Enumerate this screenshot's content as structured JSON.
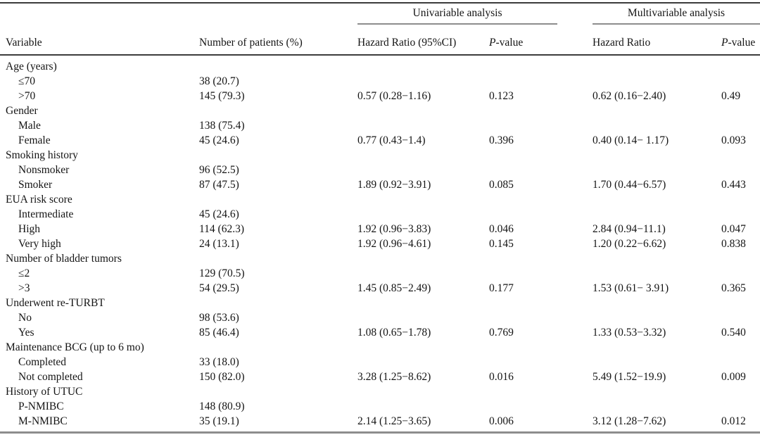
{
  "table": {
    "colors": {
      "background": "#ffffff",
      "text": "#141414",
      "rule_dark": "#3c3c3c",
      "rule_gray": "#8d8d8d"
    },
    "headers": {
      "univariable_group": "Univariable analysis",
      "multivariable_group": "Multivariable analysis",
      "variable": "Variable",
      "patients": "Number of patients (%)",
      "uni_hazard_ratio": "Hazard Ratio (95%CI)",
      "multi_hazard_ratio": "Hazard Ratio",
      "p_italic": "P",
      "p_rest": "-value"
    },
    "rows": [
      {
        "label": "Age (years)",
        "indent": false,
        "patients": "",
        "uni_hr": "",
        "uni_p": "",
        "multi_hr": "",
        "multi_p": ""
      },
      {
        "label": "≤70",
        "indent": true,
        "patients": "38 (20.7)",
        "uni_hr": "",
        "uni_p": "",
        "multi_hr": "",
        "multi_p": ""
      },
      {
        "label": ">70",
        "indent": true,
        "patients": "145 (79.3)",
        "uni_hr": "0.57 (0.28−1.16)",
        "uni_p": "0.123",
        "multi_hr": "0.62 (0.16−2.40)",
        "multi_p": "0.49"
      },
      {
        "label": "Gender",
        "indent": false,
        "patients": "",
        "uni_hr": "",
        "uni_p": "",
        "multi_hr": "",
        "multi_p": ""
      },
      {
        "label": "Male",
        "indent": true,
        "patients": "138 (75.4)",
        "uni_hr": "",
        "uni_p": "",
        "multi_hr": "",
        "multi_p": ""
      },
      {
        "label": "Female",
        "indent": true,
        "patients": "45 (24.6)",
        "uni_hr": "0.77 (0.43−1.4)",
        "uni_p": "0.396",
        "multi_hr": "0.40 (0.14− 1.17)",
        "multi_p": "0.093"
      },
      {
        "label": "Smoking history",
        "indent": false,
        "patients": "",
        "uni_hr": "",
        "uni_p": "",
        "multi_hr": "",
        "multi_p": ""
      },
      {
        "label": "Nonsmoker",
        "indent": true,
        "patients": "96 (52.5)",
        "uni_hr": "",
        "uni_p": "",
        "multi_hr": "",
        "multi_p": ""
      },
      {
        "label": "Smoker",
        "indent": true,
        "patients": "87 (47.5)",
        "uni_hr": "1.89 (0.92−3.91)",
        "uni_p": "0.085",
        "multi_hr": "1.70 (0.44−6.57)",
        "multi_p": "0.443"
      },
      {
        "label": "EUA risk score",
        "indent": false,
        "patients": "",
        "uni_hr": "",
        "uni_p": "",
        "multi_hr": "",
        "multi_p": ""
      },
      {
        "label": "Intermediate",
        "indent": true,
        "patients": "45 (24.6)",
        "uni_hr": "",
        "uni_p": "",
        "multi_hr": "",
        "multi_p": ""
      },
      {
        "label": "High",
        "indent": true,
        "patients": "114 (62.3)",
        "uni_hr": "1.92 (0.96−3.83)",
        "uni_p": "0.046",
        "multi_hr": "2.84 (0.94−11.1)",
        "multi_p": "0.047"
      },
      {
        "label": "Very high",
        "indent": true,
        "patients": "24 (13.1)",
        "uni_hr": "1.92 (0.96−4.61)",
        "uni_p": "0.145",
        "multi_hr": "1.20 (0.22−6.62)",
        "multi_p": "0.838"
      },
      {
        "label": "Number of bladder tumors",
        "indent": false,
        "patients": "",
        "uni_hr": "",
        "uni_p": "",
        "multi_hr": "",
        "multi_p": ""
      },
      {
        "label": "≤2",
        "indent": true,
        "patients": "129 (70.5)",
        "uni_hr": "",
        "uni_p": "",
        "multi_hr": "",
        "multi_p": ""
      },
      {
        "label": ">3",
        "indent": true,
        "patients": "54 (29.5)",
        "uni_hr": "1.45 (0.85−2.49)",
        "uni_p": "0.177",
        "multi_hr": "1.53 (0.61− 3.91)",
        "multi_p": "0.365"
      },
      {
        "label": "Underwent re-TURBT",
        "indent": false,
        "patients": "",
        "uni_hr": "",
        "uni_p": "",
        "multi_hr": "",
        "multi_p": ""
      },
      {
        "label": "No",
        "indent": true,
        "patients": "98 (53.6)",
        "uni_hr": "",
        "uni_p": "",
        "multi_hr": "",
        "multi_p": ""
      },
      {
        "label": "Yes",
        "indent": true,
        "patients": "85 (46.4)",
        "uni_hr": "1.08 (0.65−1.78)",
        "uni_p": "0.769",
        "multi_hr": "1.33 (0.53−3.32)",
        "multi_p": "0.540"
      },
      {
        "label": "Maintenance BCG (up to 6 mo)",
        "indent": false,
        "patients": "",
        "uni_hr": "",
        "uni_p": "",
        "multi_hr": "",
        "multi_p": ""
      },
      {
        "label": "Completed",
        "indent": true,
        "patients": "33 (18.0)",
        "uni_hr": "",
        "uni_p": "",
        "multi_hr": "",
        "multi_p": ""
      },
      {
        "label": "Not completed",
        "indent": true,
        "patients": "150 (82.0)",
        "uni_hr": "3.28 (1.25−8.62)",
        "uni_p": "0.016",
        "multi_hr": "5.49 (1.52−19.9)",
        "multi_p": "0.009"
      },
      {
        "label": "History of UTUC",
        "indent": false,
        "patients": "",
        "uni_hr": "",
        "uni_p": "",
        "multi_hr": "",
        "multi_p": ""
      },
      {
        "label": "P-NMIBC",
        "indent": true,
        "patients": "148 (80.9)",
        "uni_hr": "",
        "uni_p": "",
        "multi_hr": "",
        "multi_p": ""
      },
      {
        "label": "M-NMIBC",
        "indent": true,
        "patients": "35 (19.1)",
        "uni_hr": "2.14 (1.25−3.65)",
        "uni_p": "0.006",
        "multi_hr": "3.12 (1.28−7.62)",
        "multi_p": "0.012"
      }
    ]
  }
}
